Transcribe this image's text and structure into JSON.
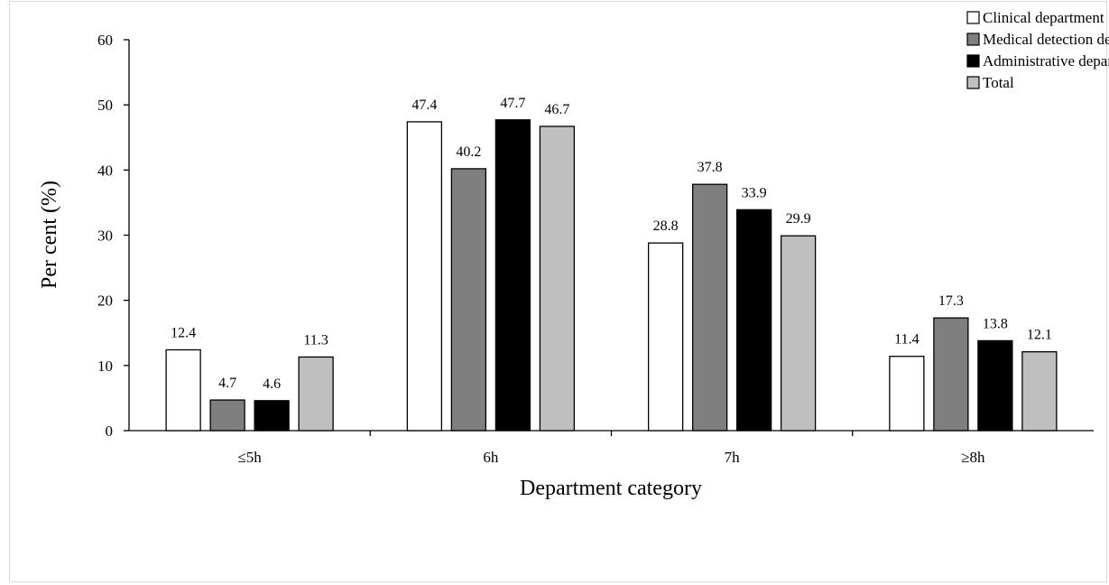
{
  "chart_data": {
    "type": "bar",
    "categories": [
      "≤5h",
      "6h",
      "7h",
      "≥8h"
    ],
    "series": [
      {
        "name": "Clinical department",
        "color": "#ffffff",
        "values": [
          12.4,
          47.4,
          28.8,
          11.4
        ]
      },
      {
        "name": "Medical detection departments",
        "color": "#7f7f7f",
        "values": [
          4.7,
          40.2,
          37.8,
          17.3
        ]
      },
      {
        "name": "Administrative department",
        "color": "#000000",
        "values": [
          4.6,
          47.7,
          33.9,
          13.8
        ]
      },
      {
        "name": "Total",
        "color": "#bfbfbf",
        "values": [
          11.3,
          46.7,
          29.9,
          12.1
        ]
      }
    ],
    "data_labels": [
      [
        "12.4",
        "47.4",
        "28.8",
        "11.4"
      ],
      [
        "4.7",
        "40.2",
        "37.8",
        "17.3"
      ],
      [
        "4.6",
        "47.7",
        "33.9",
        "13.8"
      ],
      [
        "11.3",
        "46.7",
        "29.9",
        "12.1"
      ]
    ],
    "title": "",
    "xlabel": "Department category",
    "ylabel": "Per cent (%)",
    "ylim": [
      0,
      60
    ],
    "yticks": [
      "0",
      "10",
      "20",
      "30",
      "40",
      "50",
      "60"
    ],
    "ytick_values": [
      0,
      10,
      20,
      30,
      40,
      50,
      60
    ],
    "grid": false,
    "legend_position": "top-right",
    "bar_outline_color": "#000000",
    "label_colors": {
      "default": "#000000",
      "total": "#595959"
    }
  }
}
